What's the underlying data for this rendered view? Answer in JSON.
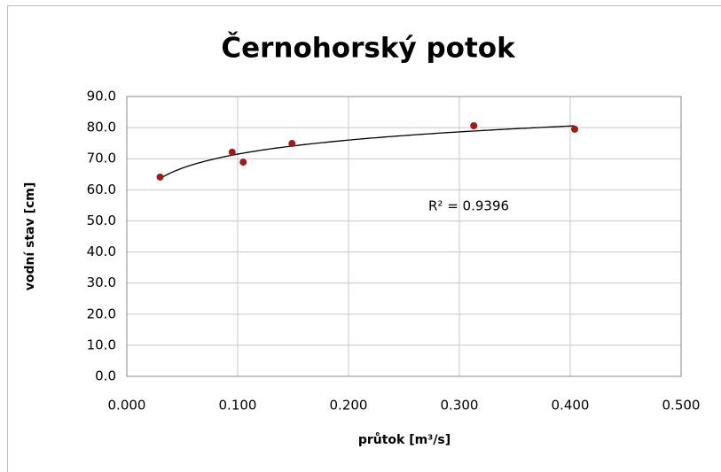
{
  "chart_data": {
    "type": "scatter",
    "title": "Černohorský potok",
    "x_label": "průtok [m³/s]",
    "y_label": "vodní stav [cm]",
    "series": [
      {
        "name": "vodní stav",
        "color": "#a01c1c",
        "x": [
          0.03,
          0.095,
          0.105,
          0.149,
          0.313,
          0.404
        ],
        "values": [
          64.1,
          72.1,
          68.9,
          74.9,
          80.6,
          79.5
        ]
      }
    ],
    "trendline": "logarithmic",
    "annotation": "R² = 0.9396",
    "xlim": [
      0,
      0.5
    ],
    "xticks": [
      {
        "value": 0,
        "label": "0.000"
      },
      {
        "value": 0.1,
        "label": "0.100"
      },
      {
        "value": 0.2,
        "label": "0.200"
      },
      {
        "value": 0.3,
        "label": "0.300"
      },
      {
        "value": 0.4,
        "label": "0.400"
      },
      {
        "value": 0.5,
        "label": "0.500"
      }
    ],
    "ylim": [
      0,
      90
    ],
    "yticks": [
      {
        "value": 0,
        "label": "0.0"
      },
      {
        "value": 10,
        "label": "10.0"
      },
      {
        "value": 20,
        "label": "20.0"
      },
      {
        "value": 30,
        "label": "30.0"
      },
      {
        "value": 40,
        "label": "40.0"
      },
      {
        "value": 50,
        "label": "50.0"
      },
      {
        "value": 60,
        "label": "60.0"
      },
      {
        "value": 70,
        "label": "70.0"
      },
      {
        "value": 80,
        "label": "80.0"
      },
      {
        "value": 90,
        "label": "90.0"
      }
    ],
    "grid": true
  }
}
